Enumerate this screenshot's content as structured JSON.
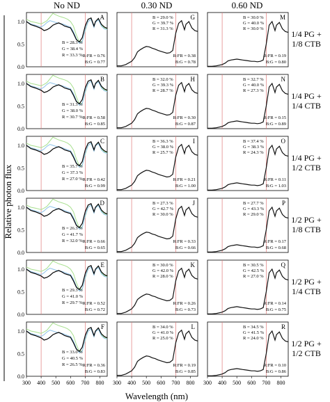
{
  "chart_data": {
    "type": "line",
    "title": "",
    "xlabel": "Wavelength (nm)",
    "ylabel": "Relative photon flux",
    "xlim": [
      300,
      850
    ],
    "ylim": [
      0,
      1.2
    ],
    "x_ticks": [
      "300",
      "400",
      "500",
      "600",
      "700",
      "800"
    ],
    "y_ticks": [
      "0.0",
      "0.5",
      "1.0"
    ],
    "red_reference_lines_nm": [
      400,
      700
    ],
    "colors": {
      "no_nd": "#000000",
      "green_series": "#a8e08f",
      "blue_series": "#8ec3ea",
      "nd_trace": "#111111",
      "ref_line": "#e07a7a"
    },
    "column_headers": [
      "No ND",
      "0.30 ND",
      "0.60 ND"
    ],
    "row_labels": [
      [
        "1/4 PG +",
        "1/8 CTB"
      ],
      [
        "1/4 PG +",
        "1/4 CTB"
      ],
      [
        "1/4 PG +",
        "1/2 CTB"
      ],
      [
        "1/2 PG +",
        "1/8 CTB"
      ],
      [
        "1/2 PG +",
        "1/4 CTB"
      ],
      [
        "1/2 PG +",
        "1/2 CTB"
      ]
    ],
    "panels": [
      [
        {
          "letter": "A",
          "B": "B = 28.3 %",
          "G": "G = 38.4 %",
          "R": "R = 33.3 %",
          "RFR": "R:FR = 0.76",
          "BG": "B:G = 0.77"
        },
        {
          "letter": "G",
          "B": "B = 29.0 %",
          "G": "G = 39.7 %",
          "R": "R = 31.3 %",
          "RFR": "R:FR = 0.38",
          "BG": "B:G = 0.78"
        },
        {
          "letter": "M",
          "B": "B = 30.0 %",
          "G": "G = 40.0 %",
          "R": "R = 30.0 %",
          "RFR": "R:FR = 0.19",
          "BG": "B:G = 0.80"
        }
      ],
      [
        {
          "letter": "B",
          "B": "B = 31.3 %",
          "G": "G = 38.0 %",
          "R": "R = 30.7 %",
          "RFR": "R:FR = 0.58",
          "BG": "B:G = 0.85"
        },
        {
          "letter": "H",
          "B": "B = 32.0 %",
          "G": "G = 39.3 %",
          "R": "R = 28.7 %",
          "RFR": "R:FR = 0.30",
          "BG": "B:G = 0.87"
        },
        {
          "letter": "N",
          "B": "B = 32.7 %",
          "G": "G = 40.0 %",
          "R": "R = 27.3 %",
          "RFR": "R:FR = 0.15",
          "BG": "B:G = 0.89"
        }
      ],
      [
        {
          "letter": "C",
          "B": "B = 35.7 %",
          "G": "G = 37.3 %",
          "R": "R = 27.0 %",
          "RFR": "R:FR = 0.42",
          "BG": "B:G = 0.99"
        },
        {
          "letter": "I",
          "B": "B = 36.3 %",
          "G": "G = 38.0 %",
          "R": "R = 25.7 %",
          "RFR": "R:FR = 0.21",
          "BG": "B:G = 1.00"
        },
        {
          "letter": "O",
          "B": "B = 37.4 %",
          "G": "G = 38.3 %",
          "R": "R = 24.3 %",
          "RFR": "R:FR = 0.11",
          "BG": "B:G = 1.03"
        }
      ],
      [
        {
          "letter": "D",
          "B": "B = 26.3 %",
          "G": "G = 41.7 %",
          "R": "R = 32.0 %",
          "RFR": "R:FR = 0.66",
          "BG": "B:G = 0.65"
        },
        {
          "letter": "J",
          "B": "B = 27.3 %",
          "G": "G = 42.7 %",
          "R": "R = 30.0 %",
          "RFR": "R:FR = 0.33",
          "BG": "B:G = 0.66"
        },
        {
          "letter": "P",
          "B": "B = 27.7 %",
          "G": "G = 43.3 %",
          "R": "R = 29.0 %",
          "RFR": "R:FR = 0.17",
          "BG": "B:G = 0.68"
        }
      ],
      [
        {
          "letter": "E",
          "B": "B = 29.3 %",
          "G": "G = 41.0 %",
          "R": "R = 29.7 %",
          "RFR": "R:FR = 0.52",
          "BG": "B:G = 0.72"
        },
        {
          "letter": "K",
          "B": "B = 30.0 %",
          "G": "G = 42.0 %",
          "R": "R = 28.0 %",
          "RFR": "R:FR = 0.26",
          "BG": "B:G = 0.73"
        },
        {
          "letter": "Q",
          "B": "B = 30.5 %",
          "G": "G = 42.5 %",
          "R": "R = 27.0 %",
          "RFR": "R:FR = 0.14",
          "BG": "B:G = 0.75"
        }
      ],
      [
        {
          "letter": "F",
          "B": "B = 33.0 %",
          "G": "G = 40.5 %",
          "R": "R = 26.5 %",
          "RFR": "R:FR = 0.36",
          "BG": "B:G = 0.83"
        },
        {
          "letter": "L",
          "B": "B = 34.0 %",
          "G": "G = 41.0 %",
          "R": "R = 25.0 %",
          "RFR": "R:FR = 0.19",
          "BG": "B:G = 0.85"
        },
        {
          "letter": "R",
          "B": "B = 34.5 %",
          "G": "G = 41.5 %",
          "R": "R = 24.0 %",
          "RFR": "R:FR = 0.10",
          "BG": "B:G = 0.86"
        }
      ]
    ],
    "series": [
      {
        "nm": [
          300,
          330,
          360,
          400,
          420,
          440,
          460,
          480,
          500,
          520,
          540,
          560,
          580,
          600,
          620,
          640,
          660,
          680,
          700,
          720,
          740,
          760,
          770,
          790,
          810,
          830,
          850
        ],
        "col0_black": [
          1.0,
          0.93,
          0.9,
          0.85,
          0.8,
          0.82,
          0.86,
          0.92,
          0.95,
          0.97,
          0.94,
          0.9,
          0.88,
          0.86,
          0.74,
          0.6,
          0.55,
          0.64,
          0.9,
          1.05,
          1.08,
          0.9,
          1.0,
          1.07,
          0.94,
          0.88,
          0.85
        ],
        "col0_green": [
          1.05,
          1.0,
          0.98,
          0.95,
          0.98,
          1.02,
          1.1,
          1.18,
          1.15,
          1.12,
          1.1,
          1.08,
          1.05,
          1.0,
          0.9,
          0.7,
          0.55,
          0.56,
          0.8,
          1.0,
          1.05,
          0.88,
          1.0,
          1.05,
          0.92,
          0.86,
          0.84
        ],
        "col0_blue": [
          1.0,
          0.95,
          0.92,
          0.88,
          0.92,
          0.98,
          1.02,
          1.0,
          0.98,
          0.96,
          0.95,
          0.93,
          0.9,
          0.88,
          0.78,
          0.62,
          0.52,
          0.55,
          0.82,
          1.0,
          1.05,
          0.87,
          0.98,
          1.04,
          0.9,
          0.84,
          0.82
        ],
        "nd30": [
          0.02,
          0.02,
          0.05,
          0.12,
          0.2,
          0.33,
          0.38,
          0.42,
          0.45,
          0.44,
          0.41,
          0.39,
          0.36,
          0.34,
          0.32,
          0.3,
          0.31,
          0.36,
          0.74,
          0.96,
          1.02,
          0.82,
          0.94,
          1.0,
          0.86,
          0.8,
          0.78
        ],
        "nd60": [
          0.01,
          0.01,
          0.02,
          0.05,
          0.08,
          0.13,
          0.15,
          0.16,
          0.17,
          0.16,
          0.15,
          0.14,
          0.13,
          0.12,
          0.12,
          0.11,
          0.12,
          0.15,
          0.5,
          0.92,
          1.0,
          0.8,
          0.92,
          0.98,
          0.84,
          0.78,
          0.76
        ]
      }
    ]
  }
}
